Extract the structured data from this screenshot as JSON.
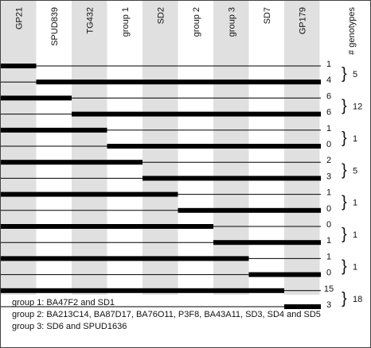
{
  "columns": [
    "GP21",
    "SPUD839",
    "TG432",
    "group 1",
    "SD2",
    "group 2",
    "group 3",
    "SD7",
    "GP179"
  ],
  "count_header": "# genotypes",
  "pairs": [
    {
      "counts": [
        "1",
        "4"
      ],
      "total": "5"
    },
    {
      "counts": [
        "6",
        "6"
      ],
      "total": "12"
    },
    {
      "counts": [
        "1",
        "0"
      ],
      "total": "1"
    },
    {
      "counts": [
        "2",
        "3"
      ],
      "total": "5"
    },
    {
      "counts": [
        "1",
        "0"
      ],
      "total": "1"
    },
    {
      "counts": [
        "0",
        "1"
      ],
      "total": "1"
    },
    {
      "counts": [
        "1",
        "0"
      ],
      "total": "1"
    },
    {
      "counts": [
        "15",
        "3"
      ],
      "total": "18"
    }
  ],
  "legend": [
    "group 1: BA47F2 and SD1",
    "group 2: BA213C14, BA87D17, BA76O11, P3F8, BA43A11, SD3, SD4 and SD5",
    "group 3: SD6 and SPUD1636"
  ],
  "colors": {
    "shaded_column": "#e0e0e0",
    "bar": "#000000",
    "line": "#000000"
  }
}
